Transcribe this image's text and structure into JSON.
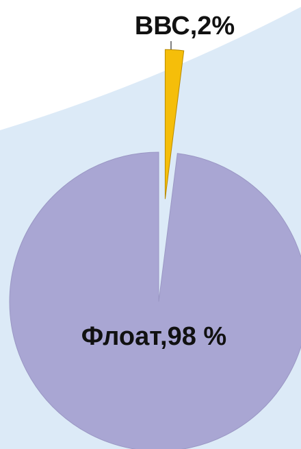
{
  "chart_data": {
    "type": "pie",
    "values": [
      2,
      98
    ],
    "value_labels": [
      "ВВС,2%",
      "Флоат,98 %"
    ],
    "colors": [
      "#f5be0a",
      "#a9a6d3"
    ]
  }
}
